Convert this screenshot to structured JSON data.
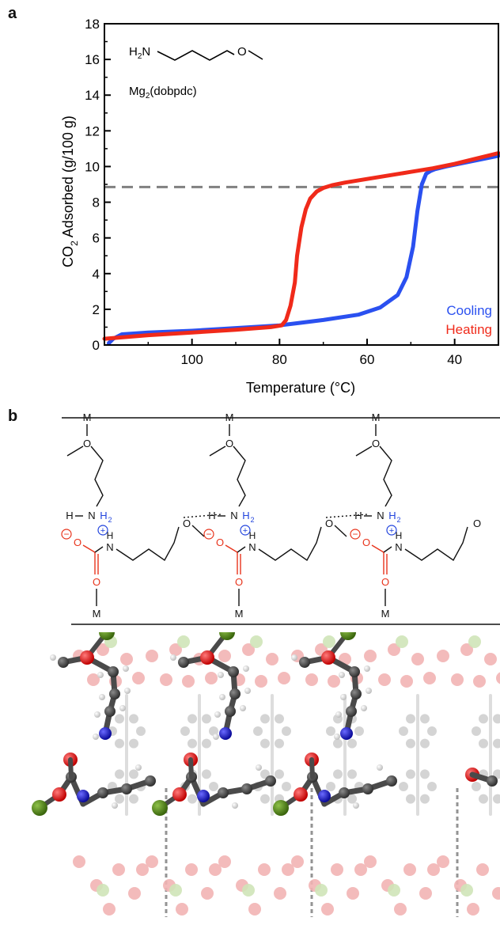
{
  "panel_labels": {
    "a": "a",
    "b": "b"
  },
  "chart_data": {
    "type": "line",
    "xlabel": "Temperature (°C)",
    "ylabel_main": "CO",
    "ylabel_sub": "2",
    "ylabel_rest": " Adsorbed (g/100 g)",
    "xlim": [
      120,
      30
    ],
    "ylim": [
      0,
      18
    ],
    "x_ticks": [
      100,
      80,
      60,
      40
    ],
    "x_tick_labels": [
      "100",
      "80",
      "60",
      "40"
    ],
    "y_ticks": [
      0,
      2,
      4,
      6,
      8,
      10,
      12,
      14,
      16,
      18
    ],
    "y_tick_labels": [
      "0",
      "2",
      "4",
      "6",
      "8",
      "10",
      "12",
      "14",
      "16",
      "18"
    ],
    "reference_line": {
      "y": 8.85,
      "style": "dashed",
      "color": "#808080"
    },
    "annotation": {
      "amine_label": "H2N",
      "framework_main": "Mg",
      "framework_sub": "2",
      "framework_rest": "(dobpdc)"
    },
    "legend_position": "bottom-right",
    "series": [
      {
        "name": "Cooling",
        "color": "#2a50f0",
        "x": [
          119,
          118,
          116,
          110,
          100,
          90,
          80,
          70,
          62,
          57,
          53,
          51,
          49.5,
          48.5,
          47.5,
          46.5,
          45.5,
          44.5,
          42,
          38,
          34,
          30
        ],
        "y": [
          0.1,
          0.35,
          0.6,
          0.7,
          0.8,
          0.95,
          1.1,
          1.4,
          1.7,
          2.1,
          2.8,
          3.8,
          5.5,
          7.5,
          9.0,
          9.6,
          9.75,
          9.85,
          10.0,
          10.2,
          10.4,
          10.6
        ]
      },
      {
        "name": "Heating",
        "color": "#f02a1a",
        "x": [
          120,
          115,
          110,
          100,
          90,
          82,
          79.5,
          78.5,
          77.5,
          76.5,
          76,
          75,
          74,
          73,
          71.5,
          70,
          68,
          65,
          60,
          55,
          50,
          45,
          40,
          35,
          30
        ],
        "y": [
          0.35,
          0.45,
          0.55,
          0.7,
          0.85,
          1.0,
          1.1,
          1.4,
          2.2,
          3.5,
          5.0,
          6.6,
          7.6,
          8.2,
          8.6,
          8.8,
          8.95,
          9.1,
          9.3,
          9.5,
          9.7,
          9.9,
          10.15,
          10.45,
          10.75
        ]
      }
    ]
  },
  "scheme": {
    "metal": "M",
    "oxygen": "O",
    "nitrogen_h": "N",
    "h2": "H",
    "h2_sub": "2",
    "h": "H",
    "plus": "+",
    "minus": "−",
    "colors": {
      "blue": "#2244dd",
      "red": "#e8341c",
      "black": "#111111"
    }
  },
  "structure_colors": {
    "carbon": "#4a4a4a",
    "oxygen": "#dd1111",
    "nitrogen": "#1a1acc",
    "metal": "#4a7a12",
    "hydrogen": "#f2f2f2",
    "faded_oxygen": "#f2b4b4",
    "faded_metal": "#cfe4b8",
    "faded_carbon": "#cfcfcf"
  }
}
